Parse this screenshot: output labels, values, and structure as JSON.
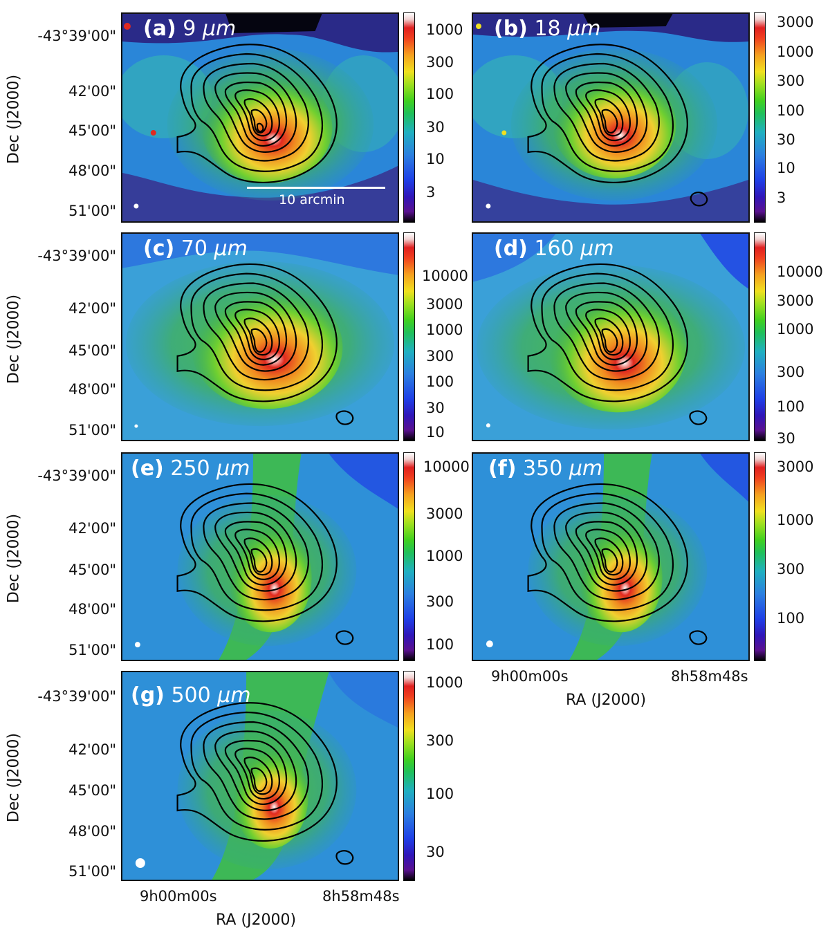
{
  "figure": {
    "ylabel": "Dec (J2000)",
    "xlabel": "RA (J2000)",
    "dec_ticks": [
      "-43°39'00\"",
      "42'00\"",
      "45'00\"",
      "48'00\"",
      "51'00\""
    ],
    "ra_ticks": [
      "9h00m00s",
      "8h58m48s"
    ],
    "scalebar_label": "10 arcmin",
    "colors": {
      "contour": "#000000",
      "label": "#ffffff",
      "frame": "#111111"
    }
  },
  "panels": [
    {
      "id": "a",
      "letter": "(a)",
      "wl": "9",
      "unit": "μm",
      "cbar_ticks": [
        "1000",
        "300",
        "100",
        "30",
        "10",
        "3"
      ]
    },
    {
      "id": "b",
      "letter": "(b)",
      "wl": "18",
      "unit": "μm",
      "cbar_ticks": [
        "3000",
        "1000",
        "300",
        "100",
        "30",
        "10",
        "3"
      ]
    },
    {
      "id": "c",
      "letter": "(c)",
      "wl": "70",
      "unit": "μm",
      "cbar_ticks": [
        "10000",
        "3000",
        "1000",
        "300",
        "100",
        "30",
        "10"
      ]
    },
    {
      "id": "d",
      "letter": "(d)",
      "wl": "160",
      "unit": "μm",
      "cbar_ticks": [
        "10000",
        "3000",
        "1000",
        "300",
        "100",
        "30"
      ]
    },
    {
      "id": "e",
      "letter": "(e)",
      "wl": "250",
      "unit": "μm",
      "cbar_ticks": [
        "10000",
        "3000",
        "1000",
        "300",
        "100"
      ]
    },
    {
      "id": "f",
      "letter": "(f)",
      "wl": "350",
      "unit": "μm",
      "cbar_ticks": [
        "3000",
        "1000",
        "300",
        "100"
      ]
    },
    {
      "id": "g",
      "letter": "(g)",
      "wl": "500",
      "unit": "μm",
      "cbar_ticks": [
        "1000",
        "300",
        "100",
        "30"
      ]
    }
  ]
}
